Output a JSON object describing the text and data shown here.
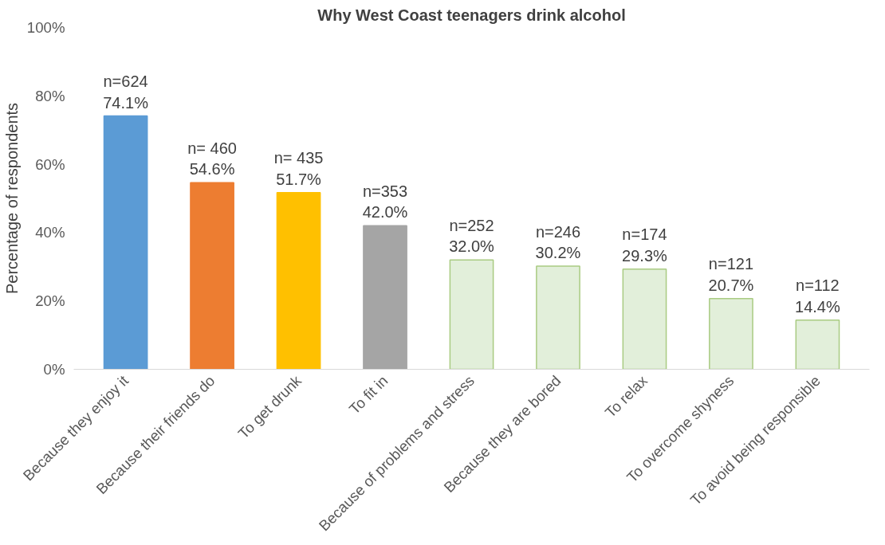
{
  "chart_data": {
    "type": "bar",
    "title": "Why West Coast teenagers drink alcohol",
    "ylabel": "Percentage of respondents",
    "categories": [
      "Because they enjoy it",
      "Because their friends do",
      "To get drunk",
      "To fit in",
      "Because of problems and stress",
      "Because they are bored",
      "To relax",
      "To overcome shyness",
      "To avoid being responsible"
    ],
    "values": [
      74.1,
      54.6,
      51.7,
      42.0,
      32.0,
      30.2,
      29.3,
      20.7,
      14.4
    ],
    "colors": [
      "#5b9bd5",
      "#ed7d31",
      "#ffc000",
      "#a5a5a5",
      "#e2efda",
      "#e2efda",
      "#e2efda",
      "#e2efda",
      "#e2efda"
    ],
    "value_labels": [
      "n=624\n74.1%",
      "n= 460\n54.6%",
      "n= 435\n51.7%",
      "n=353\n42.0%",
      "n=252\n32.0%",
      "n=246\n30.2%",
      "n=174\n29.3%",
      "n=121\n20.7%",
      "n=112\n14.4%"
    ],
    "ylim": [
      0,
      100
    ],
    "yticks": [
      {
        "value": 0,
        "label": "0%"
      },
      {
        "value": 20,
        "label": "20%"
      },
      {
        "value": 40,
        "label": "40%"
      },
      {
        "value": 60,
        "label": "60%"
      },
      {
        "value": 80,
        "label": "80%"
      },
      {
        "value": 100,
        "label": "100%"
      }
    ],
    "grid": false
  }
}
